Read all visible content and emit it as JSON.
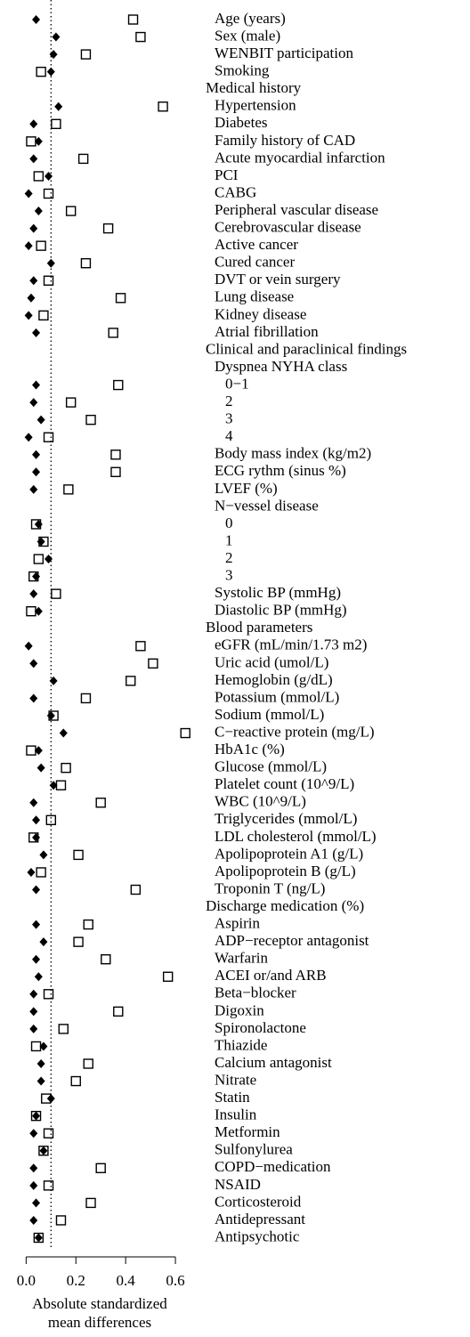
{
  "chart_data": {
    "type": "dot",
    "xlabel": "Absolute standardized\nmean differences",
    "categories": [
      "Age (years)",
      "Sex (male)",
      "WENBIT participation",
      "Smoking",
      "Medical history",
      "Hypertension",
      "Diabetes",
      "Family history of CAD",
      "Acute myocardial infarction",
      "PCI",
      "CABG",
      "Peripheral vascular disease",
      "Cerebrovascular disease",
      "Active cancer",
      "Cured cancer",
      "DVT or vein surgery",
      "Lung disease",
      "Kidney disease",
      "Atrial fibrillation",
      "Clinical and paraclinical findings",
      "Dyspnea NYHA class",
      "0−1",
      "2",
      "3",
      "4",
      "Body mass index (kg/m2)",
      "ECG rythm (sinus %)",
      "LVEF (%)",
      "N−vessel disease",
      "0",
      "1",
      "2",
      "3",
      "Systolic BP (mmHg)",
      "Diastolic BP (mmHg)",
      "Blood parameters",
      "eGFR (mL/min/1.73 m2)",
      "Uric acid (umol/L)",
      "Hemoglobin (g/dL)",
      "Potassium (mmol/L)",
      "Sodium (mmol/L)",
      "C−reactive protein (mg/L)",
      "HbA1c (%)",
      "Glucose (mmol/L)",
      "Platelet count (10^9/L)",
      "WBC (10^9/L)",
      "Triglycerides (mmol/L)",
      "LDL cholesterol (mmol/L)",
      "Apolipoprotein A1 (g/L)",
      "Apolipoprotein B (g/L)",
      "Troponin T (ng/L)",
      "Discharge medication (%)",
      "Aspirin",
      "ADP−receptor antagonist",
      "Warfarin",
      "ACEI or/and ARB",
      "Beta−blocker",
      "Digoxin",
      "Spironolactone",
      "Thiazide",
      "Calcium antagonist",
      "Nitrate",
      "Statin",
      "Insulin",
      "Metformin",
      "Sulfonylurea",
      "COPD−medication",
      "NSAID",
      "Corticosteroid",
      "Antidepressant",
      "Antipsychotic"
    ],
    "series": [
      {
        "marker": "diamond",
        "color": "#000000",
        "values": [
          0.04,
          0.12,
          0.11,
          0.1,
          null,
          0.13,
          0.03,
          0.05,
          0.03,
          0.09,
          0.01,
          0.05,
          0.03,
          0.01,
          0.1,
          0.03,
          0.02,
          0.01,
          0.04,
          null,
          null,
          0.04,
          0.03,
          0.06,
          0.01,
          0.04,
          0.04,
          0.03,
          null,
          0.05,
          0.06,
          0.09,
          0.04,
          0.03,
          0.05,
          null,
          0.01,
          0.03,
          0.11,
          0.03,
          0.1,
          0.15,
          0.05,
          0.06,
          0.11,
          0.03,
          0.04,
          0.04,
          0.07,
          0.02,
          0.04,
          null,
          0.04,
          0.07,
          0.04,
          0.05,
          0.03,
          0.03,
          0.03,
          0.07,
          0.06,
          0.06,
          0.1,
          0.04,
          0.03,
          0.07,
          0.03,
          0.03,
          0.04,
          0.03,
          0.05
        ]
      },
      {
        "marker": "square",
        "color": "#000000",
        "values": [
          0.43,
          0.46,
          0.24,
          0.06,
          null,
          0.55,
          0.12,
          0.02,
          0.23,
          0.05,
          0.09,
          0.18,
          0.33,
          0.06,
          0.24,
          0.09,
          0.38,
          0.07,
          0.35,
          null,
          null,
          0.37,
          0.18,
          0.26,
          0.09,
          0.36,
          0.36,
          0.17,
          null,
          0.04,
          0.07,
          0.05,
          0.03,
          0.12,
          0.02,
          null,
          0.46,
          0.51,
          0.42,
          0.24,
          0.11,
          0.64,
          0.02,
          0.16,
          0.14,
          0.3,
          0.1,
          0.03,
          0.21,
          0.06,
          0.44,
          null,
          0.25,
          0.21,
          0.32,
          0.57,
          0.09,
          0.37,
          0.15,
          0.04,
          0.25,
          0.2,
          0.08,
          0.04,
          0.09,
          0.07,
          0.3,
          0.09,
          0.26,
          0.14,
          0.05
        ]
      }
    ],
    "xlim": [
      -0.08,
      0.7
    ],
    "xticks": [
      {
        "value": 0,
        "label": "0.0"
      },
      {
        "value": 0.2,
        "label": "0.2"
      },
      {
        "value": 0.4,
        "label": "0.4"
      },
      {
        "value": 0.6,
        "label": "0.6"
      }
    ],
    "reference_line": 0.1
  }
}
